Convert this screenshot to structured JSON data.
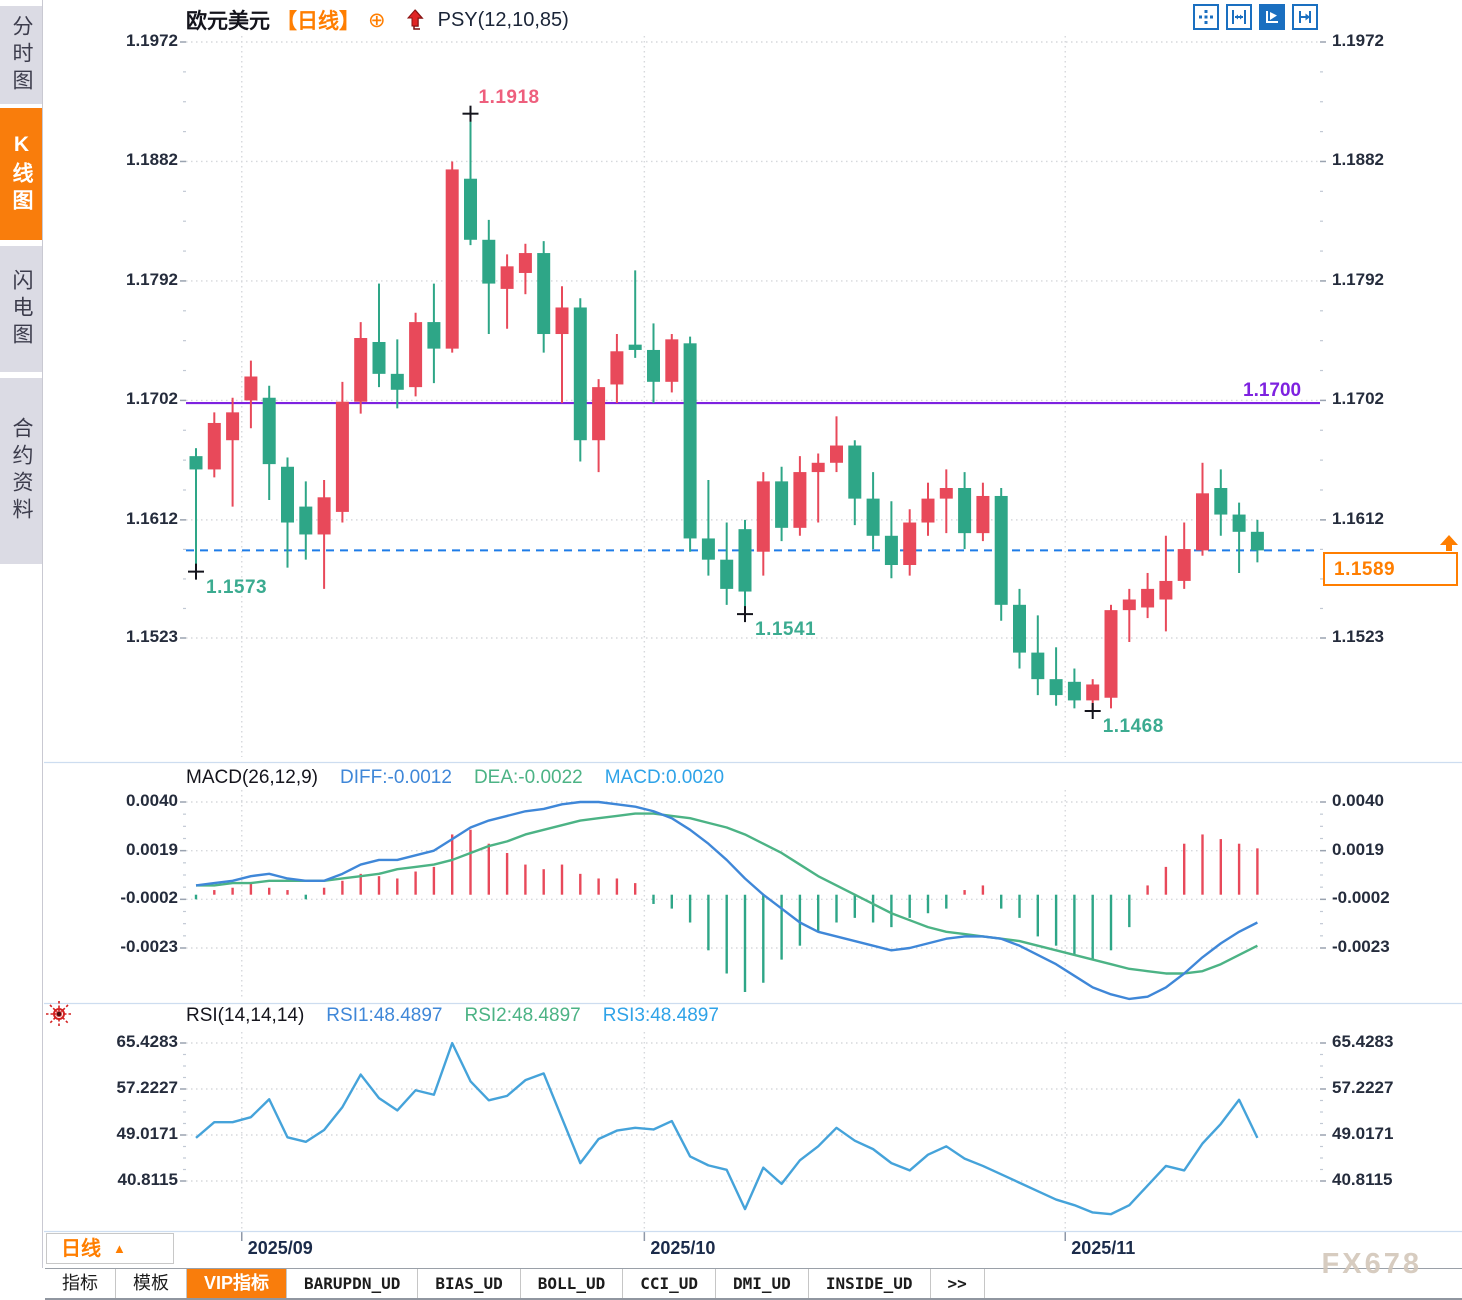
{
  "sidebar": {
    "items": [
      {
        "label": "分时图",
        "active": false
      },
      {
        "label": "K线图",
        "active": true
      },
      {
        "label": "闪电图",
        "active": false
      },
      {
        "label": "合约资料",
        "active": false
      }
    ]
  },
  "header": {
    "symbol": "欧元美元",
    "period_tag": "【日线】",
    "add_icon": "⊕",
    "indicator": "PSY(12,10,85)"
  },
  "toolbar": {
    "icons": [
      "pan-crosshair-icon",
      "axis-zoom-icon",
      "auto-scale-icon",
      "scroll-to-latest-icon"
    ],
    "active_index": 2
  },
  "main_chart": {
    "yaxis": {
      "labels": [
        "1.1972",
        "1.1882",
        "1.1792",
        "1.1702",
        "1.1612",
        "1.1523"
      ],
      "values": [
        1.1972,
        1.1882,
        1.1792,
        1.1702,
        1.1612,
        1.1523
      ]
    },
    "ref_line": {
      "value": 1.17,
      "label": "1.1700",
      "color": "#7e22e0"
    },
    "current_price": {
      "text": "1.1589",
      "value": 1.1589,
      "color": "#ff7e00"
    },
    "annotations": [
      {
        "index": 15,
        "field": "h",
        "text": "1.1918",
        "color": "#ee5f7d"
      },
      {
        "index": 0,
        "field": "l",
        "text": "1.1573",
        "color": "#3bab90"
      },
      {
        "index": 30,
        "field": "l",
        "text": "1.1541",
        "color": "#3bab90"
      },
      {
        "index": 49,
        "field": "l",
        "text": "1.1468",
        "color": "#3bab90"
      }
    ],
    "months": [
      {
        "label": "2025/09",
        "index": 3
      },
      {
        "label": "2025/10",
        "index": 25
      },
      {
        "label": "2025/11",
        "index": 48
      }
    ]
  },
  "macd_panel": {
    "title": "MACD(26,12,9)",
    "diff_label": "DIFF:-0.0012",
    "dea_label": "DEA:-0.0022",
    "macd_label": "MACD:0.0020",
    "yaxis": {
      "labels": [
        "0.0040",
        "0.0019",
        "-0.0002",
        "-0.0023"
      ],
      "values": [
        0.004,
        0.0019,
        -0.0002,
        -0.0023
      ]
    }
  },
  "rsi_panel": {
    "title": "RSI(14,14,14)",
    "rsi1_label": "RSI1:48.4897",
    "rsi2_label": "RSI2:48.4897",
    "rsi3_label": "RSI3:48.4897",
    "yaxis": {
      "labels": [
        "65.4283",
        "57.2227",
        "49.0171",
        "40.8115"
      ],
      "values": [
        65.4283,
        57.2227,
        49.0171,
        40.8115
      ]
    }
  },
  "bottom": {
    "period_button": "日线",
    "period_arrow": "▲",
    "tabs": [
      {
        "label": "指标",
        "active": false,
        "mono": false
      },
      {
        "label": "模板",
        "active": false,
        "mono": false
      },
      {
        "label": "VIP指标",
        "active": true,
        "mono": false
      },
      {
        "label": "BARUPDN_UD",
        "active": false,
        "mono": true
      },
      {
        "label": "BIAS_UD",
        "active": false,
        "mono": true
      },
      {
        "label": "BOLL_UD",
        "active": false,
        "mono": true
      },
      {
        "label": "CCI_UD",
        "active": false,
        "mono": true
      },
      {
        "label": "DMI_UD",
        "active": false,
        "mono": true
      },
      {
        "label": "INSIDE_UD",
        "active": false,
        "mono": true
      },
      {
        "label": ">>",
        "active": false,
        "mono": true
      }
    ],
    "watermark": "FX678"
  },
  "colors": {
    "up": "#e8495a",
    "down": "#2ea687",
    "diff": "#3f87d8",
    "dea": "#4cb385",
    "macd_value": "#2fa3e8",
    "rsi_line": "#45a3da",
    "ref_purple": "#7e22e0",
    "dash_blue": "#1e7ce8",
    "orange": "#ff7e00",
    "grid": "#d6d8dc",
    "marker": "#14141c"
  },
  "chart_data": {
    "type": "candlestick",
    "title": "欧元美元 日线 (EUR/USD daily)",
    "x_months": [
      "2025/09",
      "2025/10",
      "2025/11"
    ],
    "y_range": [
      1.1468,
      1.1972
    ],
    "candles": [
      [
        1.166,
        1.1666,
        1.1573,
        1.165
      ],
      [
        1.165,
        1.1693,
        1.1644,
        1.1685
      ],
      [
        1.1672,
        1.1704,
        1.1622,
        1.1693
      ],
      [
        1.1702,
        1.1732,
        1.1681,
        1.172
      ],
      [
        1.1704,
        1.1713,
        1.1627,
        1.1654
      ],
      [
        1.1652,
        1.1659,
        1.1576,
        1.161
      ],
      [
        1.1622,
        1.1641,
        1.1582,
        1.1601
      ],
      [
        1.1601,
        1.1642,
        1.156,
        1.1629
      ],
      [
        1.1618,
        1.1716,
        1.161,
        1.1701
      ],
      [
        1.1701,
        1.1761,
        1.1692,
        1.1749
      ],
      [
        1.1746,
        1.179,
        1.1712,
        1.1722
      ],
      [
        1.1722,
        1.1748,
        1.1696,
        1.171
      ],
      [
        1.1712,
        1.1768,
        1.1705,
        1.1761
      ],
      [
        1.1761,
        1.179,
        1.1715,
        1.1741
      ],
      [
        1.1741,
        1.1882,
        1.1738,
        1.1876
      ],
      [
        1.1869,
        1.1918,
        1.1819,
        1.1823
      ],
      [
        1.1823,
        1.1838,
        1.1752,
        1.179
      ],
      [
        1.1786,
        1.1812,
        1.1756,
        1.1803
      ],
      [
        1.1798,
        1.182,
        1.1782,
        1.1813
      ],
      [
        1.1813,
        1.1822,
        1.1738,
        1.1752
      ],
      [
        1.1752,
        1.1788,
        1.17,
        1.1772
      ],
      [
        1.1772,
        1.1779,
        1.1656,
        1.1672
      ],
      [
        1.1672,
        1.1718,
        1.1648,
        1.1712
      ],
      [
        1.1714,
        1.1752,
        1.17,
        1.1739
      ],
      [
        1.1744,
        1.18,
        1.1734,
        1.174
      ],
      [
        1.174,
        1.176,
        1.17,
        1.1716
      ],
      [
        1.1716,
        1.1752,
        1.1708,
        1.1748
      ],
      [
        1.1745,
        1.175,
        1.1588,
        1.1598
      ],
      [
        1.1598,
        1.1642,
        1.157,
        1.1582
      ],
      [
        1.1582,
        1.161,
        1.1548,
        1.156
      ],
      [
        1.1605,
        1.1612,
        1.1541,
        1.1558
      ],
      [
        1.1588,
        1.1648,
        1.157,
        1.1641
      ],
      [
        1.1641,
        1.1652,
        1.1596,
        1.1606
      ],
      [
        1.1606,
        1.166,
        1.16,
        1.1648
      ],
      [
        1.1648,
        1.1662,
        1.161,
        1.1655
      ],
      [
        1.1655,
        1.169,
        1.1648,
        1.1668
      ],
      [
        1.1668,
        1.1672,
        1.1608,
        1.1628
      ],
      [
        1.1628,
        1.1648,
        1.159,
        1.16
      ],
      [
        1.16,
        1.1626,
        1.1568,
        1.1578
      ],
      [
        1.1578,
        1.162,
        1.157,
        1.161
      ],
      [
        1.161,
        1.164,
        1.16,
        1.1628
      ],
      [
        1.1628,
        1.165,
        1.1602,
        1.1636
      ],
      [
        1.1636,
        1.1648,
        1.159,
        1.1602
      ],
      [
        1.1602,
        1.164,
        1.1596,
        1.163
      ],
      [
        1.163,
        1.1636,
        1.1536,
        1.1548
      ],
      [
        1.1548,
        1.156,
        1.15,
        1.1512
      ],
      [
        1.1512,
        1.154,
        1.148,
        1.1492
      ],
      [
        1.1492,
        1.1516,
        1.1472,
        1.148
      ],
      [
        1.149,
        1.15,
        1.147,
        1.1476
      ],
      [
        1.1476,
        1.1492,
        1.1468,
        1.1488
      ],
      [
        1.1478,
        1.1548,
        1.147,
        1.1544
      ],
      [
        1.1544,
        1.156,
        1.152,
        1.1552
      ],
      [
        1.1546,
        1.1572,
        1.1538,
        1.156
      ],
      [
        1.1552,
        1.16,
        1.1528,
        1.1566
      ],
      [
        1.1566,
        1.161,
        1.156,
        1.159
      ],
      [
        1.1589,
        1.1655,
        1.1585,
        1.1632
      ],
      [
        1.1636,
        1.165,
        1.16,
        1.1616
      ],
      [
        1.1616,
        1.1625,
        1.1572,
        1.1603
      ],
      [
        1.1603,
        1.1612,
        1.158,
        1.1589
      ]
    ],
    "macd": {
      "params": [
        26,
        12,
        9
      ],
      "diff": [
        0.0004,
        0.0005,
        0.0006,
        0.0008,
        0.0009,
        0.0007,
        0.0006,
        0.0006,
        0.0009,
        0.0013,
        0.0015,
        0.0015,
        0.0017,
        0.0019,
        0.0024,
        0.0029,
        0.0032,
        0.0034,
        0.0036,
        0.0037,
        0.0039,
        0.004,
        0.004,
        0.0039,
        0.0038,
        0.0036,
        0.0033,
        0.0028,
        0.0022,
        0.0015,
        0.0007,
        0.0,
        -0.0006,
        -0.0012,
        -0.0016,
        -0.0018,
        -0.002,
        -0.0022,
        -0.0024,
        -0.0023,
        -0.0021,
        -0.0019,
        -0.0018,
        -0.0018,
        -0.0019,
        -0.0022,
        -0.0026,
        -0.003,
        -0.0035,
        -0.004,
        -0.0043,
        -0.0045,
        -0.0044,
        -0.004,
        -0.0034,
        -0.0027,
        -0.0021,
        -0.0016,
        -0.0012
      ],
      "dea": [
        0.0004,
        0.0004,
        0.0005,
        0.0005,
        0.0006,
        0.0006,
        0.0006,
        0.0006,
        0.0007,
        0.0008,
        0.0009,
        0.0011,
        0.0012,
        0.0013,
        0.0015,
        0.0018,
        0.0021,
        0.0023,
        0.0026,
        0.0028,
        0.003,
        0.0032,
        0.0033,
        0.0034,
        0.0035,
        0.0035,
        0.0034,
        0.0033,
        0.0031,
        0.0029,
        0.0026,
        0.0022,
        0.0018,
        0.0013,
        0.0008,
        0.0004,
        0.0,
        -0.0004,
        -0.0008,
        -0.0011,
        -0.0014,
        -0.0016,
        -0.0017,
        -0.0018,
        -0.0019,
        -0.002,
        -0.0022,
        -0.0024,
        -0.0026,
        -0.0028,
        -0.003,
        -0.0032,
        -0.0033,
        -0.0034,
        -0.0034,
        -0.0033,
        -0.003,
        -0.0026,
        -0.0022
      ],
      "hist": [
        -0.0002,
        0.0002,
        0.0003,
        0.0005,
        0.0003,
        0.0002,
        -0.0002,
        0.0003,
        0.0006,
        0.0009,
        0.0008,
        0.0007,
        0.001,
        0.0012,
        0.0026,
        0.0028,
        0.0022,
        0.0018,
        0.0013,
        0.0011,
        0.0013,
        0.0009,
        0.0007,
        0.0007,
        0.0005,
        -0.0004,
        -0.0006,
        -0.0012,
        -0.0024,
        -0.0034,
        -0.0042,
        -0.0038,
        -0.0028,
        -0.0022,
        -0.0016,
        -0.0012,
        -0.001,
        -0.0012,
        -0.0014,
        -0.001,
        -0.0008,
        -0.0006,
        0.0002,
        0.0004,
        -0.0006,
        -0.001,
        -0.0018,
        -0.0022,
        -0.0026,
        -0.0028,
        -0.0024,
        -0.0014,
        0.0004,
        0.0012,
        0.0022,
        0.0026,
        0.0024,
        0.0022,
        0.002
      ]
    },
    "rsi": {
      "params": [
        14,
        14,
        14
      ],
      "values": [
        48.5,
        51.3,
        51.3,
        52.2,
        55.4,
        48.6,
        47.8,
        49.9,
        54.0,
        59.8,
        55.6,
        53.4,
        57.0,
        56.2,
        65.4,
        58.6,
        55.2,
        56.0,
        58.8,
        60.0,
        52.0,
        44.0,
        48.3,
        49.8,
        50.3,
        50.0,
        51.5,
        45.2,
        43.6,
        42.8,
        35.8,
        43.2,
        40.3,
        44.5,
        47.0,
        50.3,
        48.0,
        46.5,
        44.0,
        42.7,
        45.5,
        47.0,
        44.8,
        43.5,
        42.0,
        40.5,
        39.0,
        37.5,
        36.5,
        35.2,
        34.9,
        36.5,
        40.0,
        43.5,
        42.7,
        47.5,
        51.0,
        55.3,
        48.5
      ]
    }
  }
}
